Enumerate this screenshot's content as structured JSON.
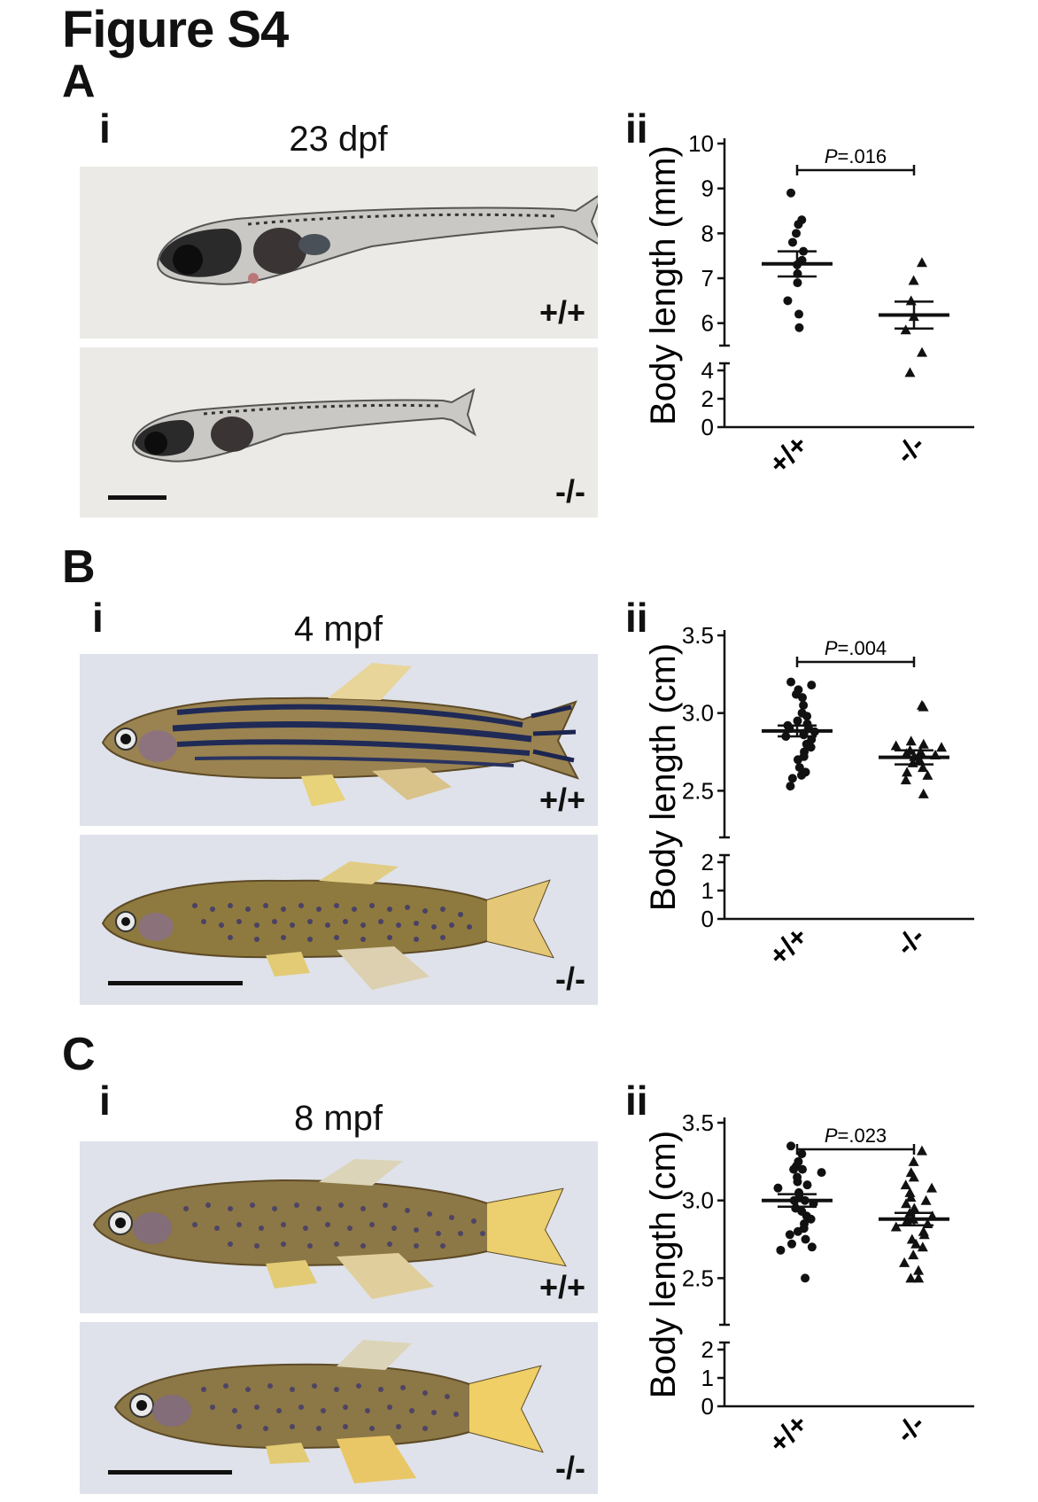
{
  "figure_title": "Figure S4",
  "panels": [
    {
      "letter": "A",
      "sub_i": "i",
      "sub_ii": "ii",
      "stage": "23 dpf",
      "photo_top_genotype": "+/+",
      "photo_bottom_genotype": "-/-",
      "photo_style": "larva",
      "colors": {
        "background": "#ebeae6"
      }
    },
    {
      "letter": "B",
      "sub_i": "i",
      "sub_ii": "ii",
      "stage": "4 mpf",
      "photo_top_genotype": "+/+",
      "photo_bottom_genotype": "-/-",
      "photo_style": "adult",
      "colors": {
        "background": "#dfe2ea"
      }
    },
    {
      "letter": "C",
      "sub_i": "i",
      "sub_ii": "ii",
      "stage": "8 mpf",
      "photo_top_genotype": "+/+",
      "photo_bottom_genotype": "-/-",
      "photo_style": "adult",
      "colors": {
        "background": "#dfe2ea"
      }
    }
  ],
  "chart_data": [
    {
      "type": "scatter",
      "ylabel": "Body length (mm)",
      "categories": [
        "+/+",
        "-/-"
      ],
      "broken_axis": true,
      "lower_ticks": [
        0,
        2,
        4
      ],
      "upper_ticks": [
        6,
        7,
        8,
        9,
        10
      ],
      "ylim_upper": [
        5.5,
        10
      ],
      "significance": "P=.016",
      "series": [
        {
          "name": "+/+",
          "marker": "circle",
          "values": [
            8.9,
            8.3,
            8.2,
            8.0,
            7.8,
            7.6,
            7.4,
            7.3,
            7.1,
            6.9,
            6.5,
            6.2,
            5.9
          ],
          "mean": 7.32,
          "sem_low": 7.04,
          "sem_high": 7.6
        },
        {
          "name": "-/-",
          "marker": "triangle",
          "values": [
            7.35,
            6.95,
            6.5,
            6.15,
            5.85,
            5.35,
            4.9
          ],
          "mean": 6.18,
          "sem_low": 5.88,
          "sem_high": 6.48
        }
      ]
    },
    {
      "type": "scatter",
      "ylabel": "Body length (cm)",
      "categories": [
        "+/+",
        "-/-"
      ],
      "broken_axis": true,
      "lower_ticks": [
        0,
        1,
        2
      ],
      "upper_ticks": [
        2.5,
        3.0,
        3.5
      ],
      "ylim_upper": [
        2.2,
        3.5
      ],
      "significance": "P=.004",
      "series": [
        {
          "name": "+/+",
          "marker": "circle",
          "values": [
            3.2,
            3.18,
            3.15,
            3.12,
            3.1,
            3.05,
            3.0,
            2.98,
            2.95,
            2.93,
            2.92,
            2.9,
            2.9,
            2.88,
            2.87,
            2.86,
            2.85,
            2.83,
            2.8,
            2.78,
            2.75,
            2.72,
            2.7,
            2.65,
            2.62,
            2.6,
            2.58,
            2.53
          ],
          "mean": 2.885,
          "sem_low": 2.85,
          "sem_high": 2.92
        },
        {
          "name": "-/-",
          "marker": "triangle",
          "values": [
            3.05,
            3.04,
            2.82,
            2.8,
            2.79,
            2.78,
            2.76,
            2.75,
            2.74,
            2.73,
            2.72,
            2.7,
            2.68,
            2.65,
            2.62,
            2.6,
            2.57,
            2.48
          ],
          "mean": 2.715,
          "sem_low": 2.67,
          "sem_high": 2.76
        }
      ]
    },
    {
      "type": "scatter",
      "ylabel": "Body length (cm)",
      "categories": [
        "+/+",
        "-/-"
      ],
      "broken_axis": true,
      "lower_ticks": [
        0,
        1,
        2
      ],
      "upper_ticks": [
        2.5,
        3.0,
        3.5
      ],
      "ylim_upper": [
        2.2,
        3.5
      ],
      "significance": "P=.023",
      "series": [
        {
          "name": "+/+",
          "marker": "circle",
          "values": [
            3.35,
            3.3,
            3.25,
            3.22,
            3.2,
            3.2,
            3.18,
            3.15,
            3.12,
            3.1,
            3.08,
            3.05,
            3.02,
            3.0,
            3.0,
            2.98,
            2.95,
            2.93,
            2.9,
            2.88,
            2.85,
            2.82,
            2.8,
            2.78,
            2.75,
            2.72,
            2.7,
            2.68,
            2.5
          ],
          "mean": 3.0,
          "sem_low": 2.96,
          "sem_high": 3.04
        },
        {
          "name": "-/-",
          "marker": "triangle",
          "values": [
            3.32,
            3.25,
            3.18,
            3.15,
            3.1,
            3.08,
            3.05,
            3.02,
            3.0,
            2.98,
            2.95,
            2.92,
            2.9,
            2.88,
            2.87,
            2.85,
            2.83,
            2.8,
            2.78,
            2.75,
            2.72,
            2.7,
            2.65,
            2.6,
            2.55,
            2.5,
            2.5
          ],
          "mean": 2.88,
          "sem_low": 2.84,
          "sem_high": 2.92
        }
      ]
    }
  ]
}
